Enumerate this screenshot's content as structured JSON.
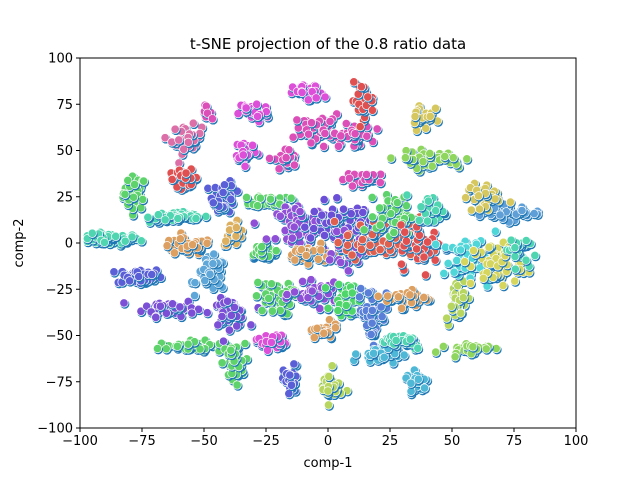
{
  "chart_data": {
    "type": "scatter",
    "title": "t-SNE projection of the 0.8 ratio data",
    "xlabel": "comp-1",
    "ylabel": "comp-2",
    "xlim": [
      -100,
      100
    ],
    "ylim": [
      -100,
      100
    ],
    "xticks": [
      "−100",
      "−75",
      "−50",
      "−25",
      "0",
      "25",
      "50",
      "75",
      "100"
    ],
    "yticks": [
      "−100",
      "−75",
      "−50",
      "−25",
      "0",
      "25",
      "50",
      "75",
      "100"
    ],
    "grid": false,
    "legend": "none",
    "point_edge_color": "#ffffff",
    "clusters": [
      {
        "color": "#5fd36b",
        "center": [
          -78,
          27
        ],
        "spread": [
          3,
          6
        ],
        "count": 45
      },
      {
        "color": "#4fd6b0",
        "center": [
          -88,
          2
        ],
        "spread": [
          8,
          2
        ],
        "count": 55
      },
      {
        "color": "#5a5fd8",
        "center": [
          -76,
          -18
        ],
        "spread": [
          6,
          3
        ],
        "count": 45
      },
      {
        "color": "#7b4fd6",
        "center": [
          -64,
          -35
        ],
        "spread": [
          7,
          3
        ],
        "count": 45
      },
      {
        "color": "#5fd36b",
        "center": [
          -55,
          -56
        ],
        "spread": [
          9,
          2
        ],
        "count": 45
      },
      {
        "color": "#dd6fa8",
        "center": [
          -57,
          56
        ],
        "spread": [
          4,
          5
        ],
        "count": 35
      },
      {
        "color": "#e05050",
        "center": [
          -58,
          35
        ],
        "spread": [
          4,
          3
        ],
        "count": 35
      },
      {
        "color": "#dd4fb8",
        "center": [
          -50,
          71
        ],
        "spread": [
          2,
          2
        ],
        "count": 10
      },
      {
        "color": "#4fd6b0",
        "center": [
          -60,
          14
        ],
        "spread": [
          8,
          2
        ],
        "count": 50
      },
      {
        "color": "#dda060",
        "center": [
          -57,
          -2
        ],
        "spread": [
          7,
          3
        ],
        "count": 45
      },
      {
        "color": "#5fa7d8",
        "center": [
          -47,
          -17
        ],
        "spread": [
          4,
          6
        ],
        "count": 40
      },
      {
        "color": "#5a5fd8",
        "center": [
          -42,
          25
        ],
        "spread": [
          3,
          6
        ],
        "count": 40
      },
      {
        "color": "#ddb060",
        "center": [
          -38,
          5
        ],
        "spread": [
          3,
          4
        ],
        "count": 25
      },
      {
        "color": "#7b4fd6",
        "center": [
          -40,
          -38
        ],
        "spread": [
          5,
          5
        ],
        "count": 40
      },
      {
        "color": "#5fd36b",
        "center": [
          -38,
          -65
        ],
        "spread": [
          3,
          7
        ],
        "count": 40
      },
      {
        "color": "#dd4fd8",
        "center": [
          -30,
          71
        ],
        "spread": [
          4,
          4
        ],
        "count": 35
      },
      {
        "color": "#dd4fd8",
        "center": [
          -33,
          50
        ],
        "spread": [
          3,
          4
        ],
        "count": 30
      },
      {
        "color": "#dd4fb8",
        "center": [
          -17,
          45
        ],
        "spread": [
          3,
          4
        ],
        "count": 30
      },
      {
        "color": "#5fd36b",
        "center": [
          -23,
          23
        ],
        "spread": [
          5,
          2
        ],
        "count": 35
      },
      {
        "color": "#5fd36b",
        "center": [
          -27,
          -5
        ],
        "spread": [
          4,
          3
        ],
        "count": 35
      },
      {
        "color": "#5fd36b",
        "center": [
          -22,
          -30
        ],
        "spread": [
          5,
          6
        ],
        "count": 45
      },
      {
        "color": "#dd4fd8",
        "center": [
          -23,
          -53
        ],
        "spread": [
          4,
          3
        ],
        "count": 30
      },
      {
        "color": "#5a5fd8",
        "center": [
          -15,
          -75
        ],
        "spread": [
          2,
          6
        ],
        "count": 30
      },
      {
        "color": "#dd4fd8",
        "center": [
          -8,
          81
        ],
        "spread": [
          4,
          3
        ],
        "count": 35
      },
      {
        "color": "#dd4fb8",
        "center": [
          -4,
          62
        ],
        "spread": [
          6,
          5
        ],
        "count": 50
      },
      {
        "color": "#dd4fb8",
        "center": [
          10,
          58
        ],
        "spread": [
          5,
          4
        ],
        "count": 35
      },
      {
        "color": "#e05050",
        "center": [
          14,
          77
        ],
        "spread": [
          3,
          6
        ],
        "count": 40
      },
      {
        "color": "#dd4fb8",
        "center": [
          16,
          35
        ],
        "spread": [
          6,
          2
        ],
        "count": 35
      },
      {
        "color": "#8f4fd6",
        "center": [
          -10,
          10
        ],
        "spread": [
          7,
          6
        ],
        "count": 60
      },
      {
        "color": "#6b4fd6",
        "center": [
          5,
          10
        ],
        "spread": [
          8,
          8
        ],
        "count": 80
      },
      {
        "color": "#dda060",
        "center": [
          -8,
          -6
        ],
        "spread": [
          6,
          3
        ],
        "count": 40
      },
      {
        "color": "#8f4fd6",
        "center": [
          -5,
          -28
        ],
        "spread": [
          6,
          4
        ],
        "count": 45
      },
      {
        "color": "#dda060",
        "center": [
          -2,
          -48
        ],
        "spread": [
          4,
          3
        ],
        "count": 25
      },
      {
        "color": "#b6d65f",
        "center": [
          1,
          -78
        ],
        "spread": [
          3,
          6
        ],
        "count": 35
      },
      {
        "color": "#8f4fd6",
        "center": [
          8,
          -5
        ],
        "spread": [
          4,
          6
        ],
        "count": 40
      },
      {
        "color": "#4fd66b",
        "center": [
          8,
          -30
        ],
        "spread": [
          4,
          6
        ],
        "count": 40
      },
      {
        "color": "#5a7fd8",
        "center": [
          18,
          -38
        ],
        "spread": [
          4,
          10
        ],
        "count": 50
      },
      {
        "color": "#4fb8d6",
        "center": [
          20,
          -60
        ],
        "spread": [
          5,
          3
        ],
        "count": 40
      },
      {
        "color": "#e06050",
        "center": [
          22,
          2
        ],
        "spread": [
          10,
          8
        ],
        "count": 90
      },
      {
        "color": "#5fd36b",
        "center": [
          27,
          15
        ],
        "spread": [
          5,
          7
        ],
        "count": 50
      },
      {
        "color": "#dda060",
        "center": [
          32,
          -30
        ],
        "spread": [
          6,
          3
        ],
        "count": 35
      },
      {
        "color": "#4fd6b0",
        "center": [
          30,
          -53
        ],
        "spread": [
          6,
          3
        ],
        "count": 35
      },
      {
        "color": "#4fb8d6",
        "center": [
          36,
          -75
        ],
        "spread": [
          3,
          5
        ],
        "count": 30
      },
      {
        "color": "#e05050",
        "center": [
          38,
          -2
        ],
        "spread": [
          6,
          8
        ],
        "count": 45
      },
      {
        "color": "#4fd6b0",
        "center": [
          42,
          18
        ],
        "spread": [
          4,
          5
        ],
        "count": 35
      },
      {
        "color": "#d6c85f",
        "center": [
          38,
          69
        ],
        "spread": [
          3,
          5
        ],
        "count": 30
      },
      {
        "color": "#8fd65f",
        "center": [
          41,
          45
        ],
        "spread": [
          9,
          3
        ],
        "count": 50
      },
      {
        "color": "#b6d65f",
        "center": [
          52,
          -30
        ],
        "spread": [
          3,
          8
        ],
        "count": 40
      },
      {
        "color": "#8fd65f",
        "center": [
          56,
          -57
        ],
        "spread": [
          6,
          2
        ],
        "count": 30
      },
      {
        "color": "#4fd6d8",
        "center": [
          58,
          -10
        ],
        "spread": [
          8,
          8
        ],
        "count": 55
      },
      {
        "color": "#d6d65f",
        "center": [
          68,
          -12
        ],
        "spread": [
          7,
          8
        ],
        "count": 50
      },
      {
        "color": "#5f9fd8",
        "center": [
          72,
          17
        ],
        "spread": [
          8,
          3
        ],
        "count": 45
      },
      {
        "color": "#d6c85f",
        "center": [
          63,
          24
        ],
        "spread": [
          5,
          6
        ],
        "count": 35
      },
      {
        "color": "#4fd6b0",
        "center": [
          76,
          -3
        ],
        "spread": [
          3,
          5
        ],
        "count": 30
      }
    ]
  }
}
